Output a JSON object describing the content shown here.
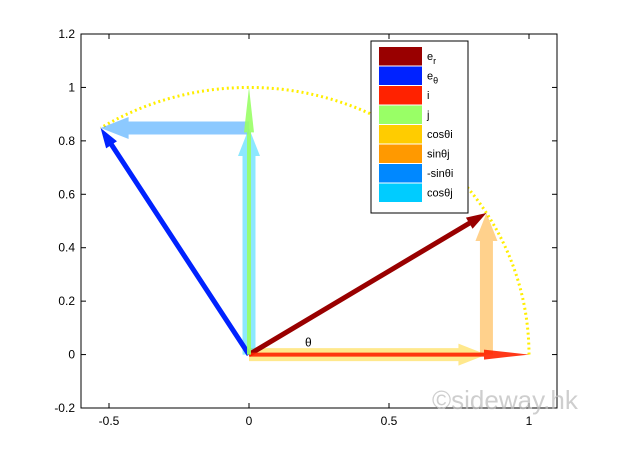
{
  "chart_data": {
    "type": "vector-plot",
    "theta_deg": 32,
    "xlim": [
      -0.6,
      1.1
    ],
    "ylim": [
      -0.2,
      1.2
    ],
    "xticks": [
      "-0.5",
      "0",
      "0.5",
      "1"
    ],
    "xtick_values": [
      -0.5,
      0,
      0.5,
      1
    ],
    "yticks": [
      "-0.2",
      "0",
      "0.2",
      "0.4",
      "0.6",
      "0.8",
      "1",
      "1.2"
    ],
    "ytick_values": [
      -0.2,
      0,
      0.2,
      0.4,
      0.6,
      0.8,
      1,
      1.2
    ],
    "annotation": "θ",
    "legend_position": "top-right",
    "series": [
      {
        "name": "e_r",
        "label": "e",
        "sub": "r",
        "color": "#990000",
        "from": [
          0,
          0
        ],
        "to": [
          0.848,
          0.53
        ],
        "style": "arrow"
      },
      {
        "name": "e_θ",
        "label": "e",
        "sub": "θ",
        "color": "#0022ff",
        "from": [
          0,
          0
        ],
        "to": [
          -0.53,
          0.848
        ],
        "style": "arrow"
      },
      {
        "name": "i",
        "label": "i",
        "color": "#ff2200",
        "from": [
          0,
          0
        ],
        "to": [
          1,
          0
        ],
        "style": "thin"
      },
      {
        "name": "j",
        "label": "j",
        "color": "#99ff66",
        "from": [
          0,
          0
        ],
        "to": [
          0,
          1
        ],
        "style": "thin"
      },
      {
        "name": "cosθi",
        "label": "cosθi",
        "color": "#ffcc00",
        "from": [
          0,
          0
        ],
        "to": [
          0.848,
          0
        ],
        "style": "wide"
      },
      {
        "name": "sinθj",
        "label": "sinθj",
        "color": "#ff9900",
        "from": [
          0.848,
          0
        ],
        "to": [
          0.848,
          0.53
        ],
        "style": "wide"
      },
      {
        "name": "-sinθi",
        "label": "-sinθi",
        "color": "#0088ff",
        "from": [
          0,
          0.848
        ],
        "to": [
          -0.53,
          0.848
        ],
        "style": "wide"
      },
      {
        "name": "cosθj",
        "label": "cosθj",
        "color": "#00ccff",
        "from": [
          0,
          0
        ],
        "to": [
          0,
          0.848
        ],
        "style": "wide"
      }
    ],
    "arc": {
      "radius": 1,
      "from_deg": 0,
      "to_deg": 122,
      "color": "#ffee00",
      "style": "dotted"
    }
  },
  "watermark": "©sideway.hk"
}
